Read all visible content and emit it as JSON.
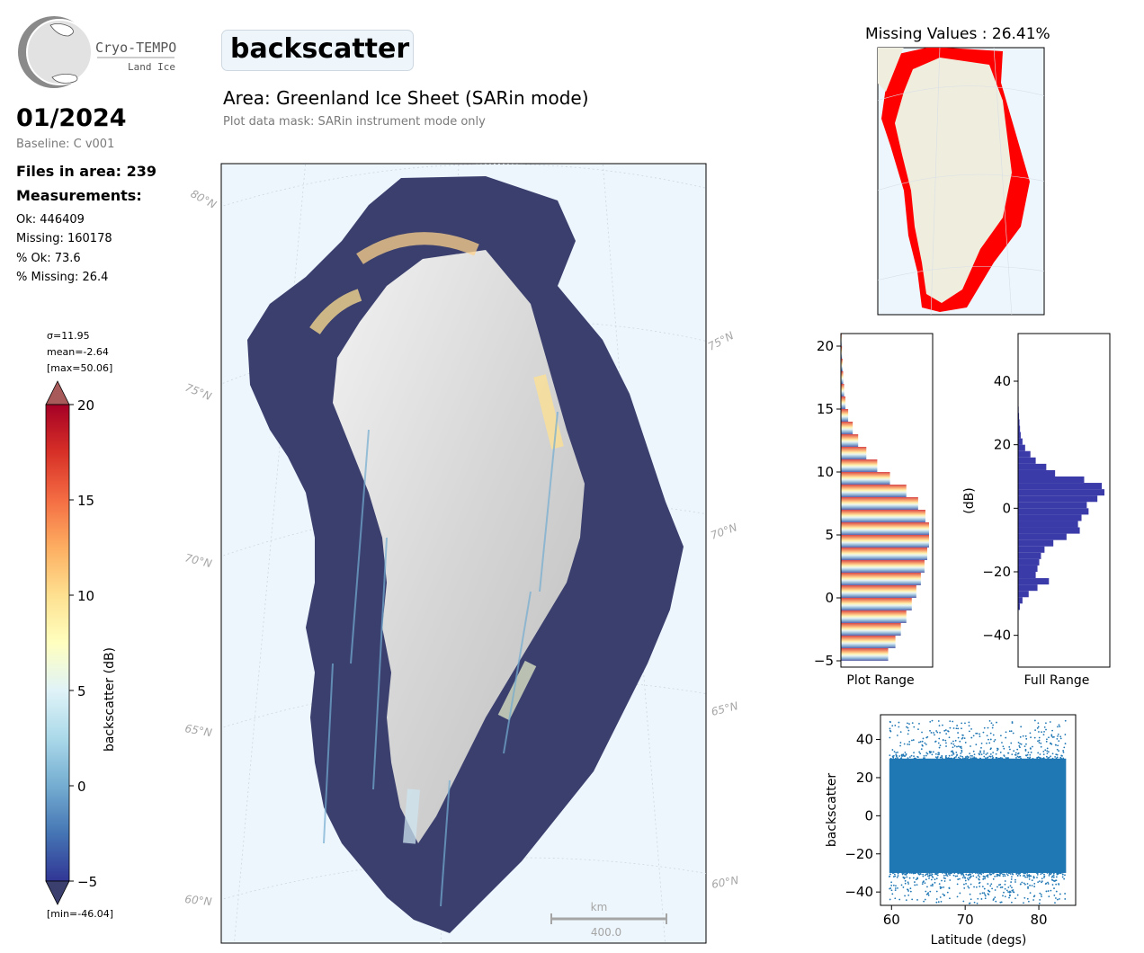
{
  "brand": {
    "name": "Cryo-TEMPO",
    "subtitle": "Land Ice"
  },
  "header": {
    "date": "01/2024",
    "baseline": "Baseline: C v001",
    "files": "Files in area: 239",
    "measurements_title": "Measurements:",
    "ok": "Ok: 446409",
    "missing": "Missing: 160178",
    "pct_ok": "% Ok: 73.6",
    "pct_missing": "% Missing: 26.4"
  },
  "parameter": {
    "name": "backscatter"
  },
  "area": {
    "title": "Area: Greenland Ice Sheet (SARin mode)",
    "mask": "Plot data mask: SARin instrument mode only"
  },
  "colorbar": {
    "label": "backscatter (dB)",
    "sigma": "σ=11.95",
    "mean": "mean=-2.64",
    "max": "[max=50.06]",
    "min": "[min=-46.04]",
    "ticks": [
      "20",
      "15",
      "10",
      "5",
      "0",
      "−5"
    ],
    "colors": [
      "#313695",
      "#4575b4",
      "#74add1",
      "#abd9e9",
      "#e0f3f8",
      "#ffffbf",
      "#fee090",
      "#fdae61",
      "#f46d43",
      "#d73027",
      "#a50026"
    ]
  },
  "map": {
    "lat_labels_left": [
      "80°N",
      "75°N",
      "70°N",
      "65°N",
      "60°N"
    ],
    "lat_labels_right": [
      "75°N",
      "70°N",
      "65°N",
      "60°N"
    ],
    "scalebar": {
      "unit": "km",
      "value": "400.0"
    },
    "colors": {
      "ocean": "#eef6fd",
      "land": "#e6e6e6",
      "low_values": "#3a3f6e"
    }
  },
  "missing_map": {
    "title": "Missing Values : 26.41%",
    "colors": {
      "land": "#efedde",
      "missing": "#ff0000"
    }
  },
  "chart_data": [
    {
      "type": "bar",
      "orientation": "horizontal",
      "xlabel": "Plot Range",
      "yticks": [
        "20",
        "15",
        "10",
        "5",
        "0",
        "−5"
      ],
      "ylim": [
        -5.5,
        21
      ],
      "bins": [
        -5,
        -4,
        -3,
        -2,
        -1,
        0,
        1,
        2,
        3,
        4,
        5,
        6,
        7,
        8,
        9,
        10,
        11,
        12,
        13,
        14,
        15,
        16,
        17,
        18,
        19,
        20
      ],
      "counts": [
        52,
        60,
        66,
        72,
        78,
        83,
        88,
        92,
        95,
        97,
        97,
        93,
        85,
        72,
        54,
        40,
        28,
        19,
        13,
        8,
        5,
        3.5,
        2.5,
        1.8,
        1.2,
        0.8
      ]
    },
    {
      "type": "bar",
      "orientation": "horizontal",
      "xlabel": "Full Range",
      "ylabel": "(dB)",
      "yticks": [
        "40",
        "20",
        "0",
        "−20",
        "−40"
      ],
      "ylim": [
        -50,
        55
      ],
      "color": "#3a3aa8",
      "bins": [
        -32,
        -30,
        -28,
        -26,
        -24,
        -22,
        -20,
        -18,
        -16,
        -14,
        -12,
        -10,
        -8,
        -6,
        -4,
        -2,
        0,
        2,
        4,
        6,
        8,
        10,
        12,
        14,
        16,
        18,
        20,
        22,
        24,
        26,
        28,
        30,
        32
      ],
      "counts": [
        2,
        5,
        12,
        22,
        35,
        20,
        22,
        24,
        26,
        30,
        40,
        55,
        70,
        68,
        72,
        80,
        78,
        90,
        98,
        95,
        75,
        42,
        32,
        20,
        14,
        8,
        5,
        3,
        2.2,
        1.6,
        1.1,
        0.7,
        0.4
      ]
    },
    {
      "type": "scatter",
      "xlabel": "Latitude (degs)",
      "ylabel": "backscatter",
      "xticks": [
        "60",
        "70",
        "80"
      ],
      "yticks": [
        "40",
        "20",
        "0",
        "−20",
        "−40"
      ],
      "xlim": [
        58.5,
        85
      ],
      "ylim": [
        -47,
        53
      ],
      "color": "#1f77b4",
      "band": {
        "x_min": 59.7,
        "x_max": 83.7,
        "core_low": -30,
        "core_high": 30,
        "outlier_low": -46,
        "outlier_high": 50
      }
    }
  ]
}
